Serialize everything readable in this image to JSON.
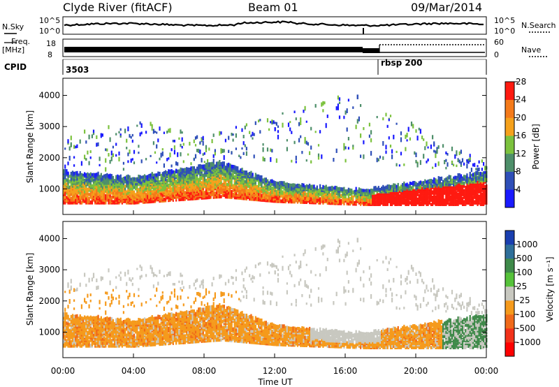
{
  "header": {
    "station": "Clyde River (fitACF)",
    "beam": "Beam 01",
    "date": "09/Mar/2014"
  },
  "top_panels": {
    "nsky_label": "N.Sky",
    "nsky_ticks": [
      "10^5",
      "10^0"
    ],
    "nsearch_label": "N.Search",
    "nsearch_ticks": [
      "10^5",
      "10^0"
    ],
    "freq_label_top": "Freq.",
    "freq_label_bottom": "[MHz]",
    "freq_ticks": [
      "18",
      "8"
    ],
    "nave_label": "Nave",
    "nave_ticks": [
      "60",
      "0"
    ],
    "cpid_label": "CPID",
    "cpid_values": [
      "3503",
      "rbsp 200"
    ]
  },
  "chart_data": [
    {
      "type": "heatmap",
      "panel": "power",
      "ylabel": "Slant Range [km]",
      "yticks": [
        1000,
        2000,
        3000,
        4000
      ],
      "ylim": [
        180,
        4550
      ],
      "xlim": [
        0,
        24
      ],
      "colorbar_label": "Power [dB]",
      "colorbar_ticks": [
        4,
        8,
        12,
        16,
        20,
        24,
        28
      ],
      "colorbar_colors": [
        "#1a1aff",
        "#2f4fb8",
        "#4e8f6a",
        "#7cc23e",
        "#f5a11c",
        "#f47a1a",
        "#ff1a10"
      ],
      "dense_band": [
        [
          0,
          500,
          1500
        ],
        [
          4,
          500,
          1300
        ],
        [
          9,
          700,
          1800
        ],
        [
          12,
          550,
          1150
        ],
        [
          17,
          450,
          900
        ],
        [
          24,
          450,
          1500
        ]
      ],
      "scatter_band": [
        [
          0,
          1500,
          2600
        ],
        [
          4,
          1500,
          3200
        ],
        [
          8,
          1800,
          2600
        ],
        [
          16,
          1800,
          4100
        ],
        [
          24,
          1500,
          1800
        ]
      ]
    },
    {
      "type": "heatmap",
      "panel": "velocity",
      "ylabel": "Slant Range [km]",
      "yticks": [
        1000,
        2000,
        3000,
        4000
      ],
      "ylim": [
        180,
        4550
      ],
      "xlim": [
        0,
        24
      ],
      "xticks": [
        "00:00",
        "04:00",
        "08:00",
        "12:00",
        "16:00",
        "20:00",
        "00:00"
      ],
      "xlabel": "Time UT",
      "colorbar_label": "Velocity [m s⁻¹]",
      "colorbar_ticks": [
        "1000",
        "500",
        "100",
        "25",
        "-25",
        "-100",
        "-500",
        "-1000"
      ],
      "colorbar_colors": [
        "#1a3fb0",
        "#2f6f9a",
        "#3f8a4a",
        "#56c23a",
        "#c8c8c0",
        "#f59a1c",
        "#f06a1a",
        "#f2321a",
        "#ff0000"
      ]
    }
  ]
}
